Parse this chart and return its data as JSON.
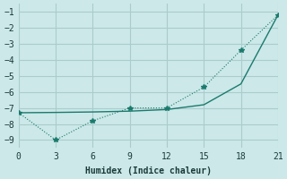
{
  "xlabel": "Humidex (Indice chaleur)",
  "bg_color": "#cce8e8",
  "grid_color": "#aacccc",
  "line1_x": [
    0,
    3,
    6,
    9,
    12,
    15,
    18,
    21
  ],
  "line1_y": [
    -7.3,
    -7.28,
    -7.25,
    -7.2,
    -7.1,
    -6.8,
    -5.5,
    -1.2
  ],
  "line2_x": [
    0,
    3,
    6,
    9,
    12,
    15,
    18,
    21
  ],
  "line2_y": [
    -7.3,
    -9.0,
    -7.8,
    -7.0,
    -7.0,
    -5.7,
    -3.4,
    -1.2
  ],
  "line_color": "#1a7a6e",
  "xlim": [
    0,
    21
  ],
  "ylim": [
    -9.5,
    -0.5
  ],
  "xticks": [
    0,
    3,
    6,
    9,
    12,
    15,
    18,
    21
  ],
  "yticks": [
    -9,
    -8,
    -7,
    -6,
    -5,
    -4,
    -3,
    -2,
    -1
  ],
  "marker": "*",
  "marker_size": 4,
  "xlabel_fontsize": 7,
  "tick_fontsize": 7
}
